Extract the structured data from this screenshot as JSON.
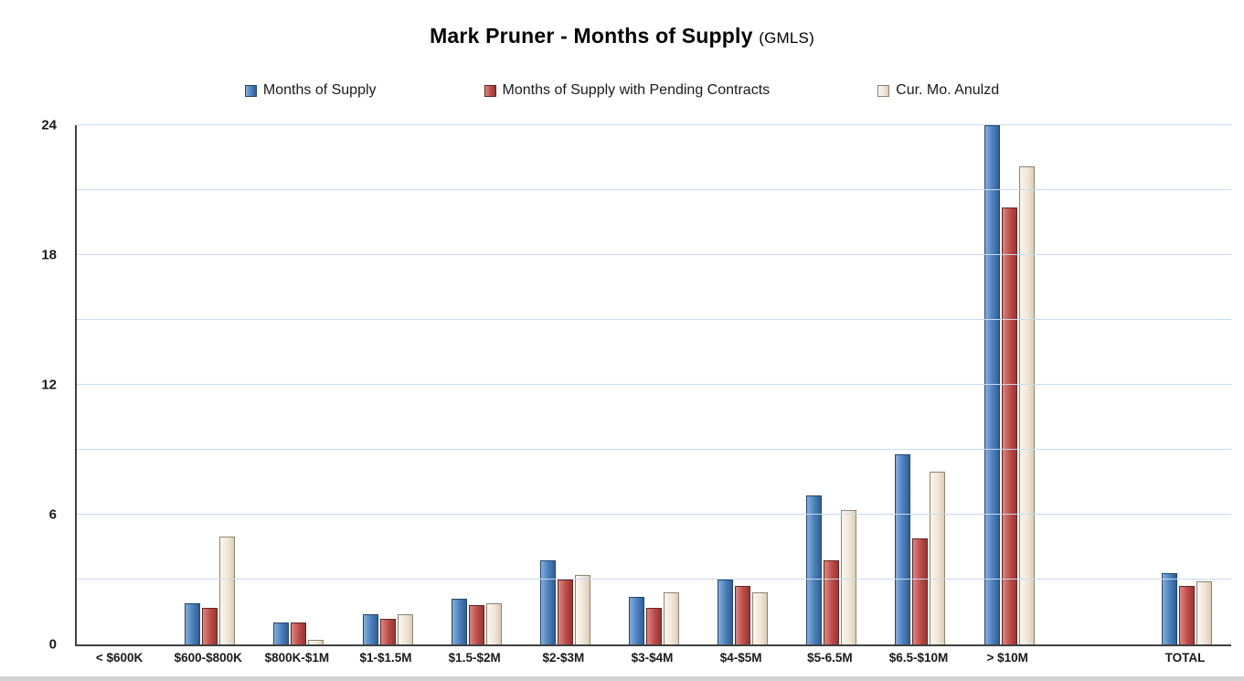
{
  "chart_data": {
    "type": "bar",
    "title": "Mark Pruner - Months of Supply",
    "title_suffix": "(GMLS)",
    "categories": [
      "< $600K",
      "$600-$800K",
      "$800K-$1M",
      "$1-$1.5M",
      "$1.5-$2M",
      "$2-$3M",
      "$3-$4M",
      "$4-$5M",
      "$5-6.5M",
      "$6.5-$10M",
      "> $10M",
      "TOTAL"
    ],
    "series": [
      {
        "name": "Months of Supply",
        "values": [
          0,
          1.9,
          1.0,
          1.4,
          2.1,
          3.9,
          2.2,
          3.0,
          6.9,
          8.8,
          24.0,
          3.3
        ],
        "colors": {
          "light": "#85aedc",
          "base": "#4a7ebb",
          "dark": "#315f93",
          "border": "#23466b"
        }
      },
      {
        "name": "Months of Supply with Pending Contracts",
        "values": [
          0,
          1.7,
          1.0,
          1.2,
          1.8,
          3.0,
          1.7,
          2.7,
          3.9,
          4.9,
          20.2,
          2.7
        ],
        "colors": {
          "light": "#d98885",
          "base": "#be4b48",
          "dark": "#953634",
          "border": "#622523"
        }
      },
      {
        "name": "Cur. Mo. Anulzd",
        "values": [
          0,
          5.0,
          0.2,
          1.4,
          1.9,
          3.2,
          2.4,
          2.4,
          6.2,
          8.0,
          22.1,
          2.9
        ],
        "colors": {
          "light": "#fbf6ee",
          "base": "#f0e6d8",
          "dark": "#dbccb6",
          "border": "#8c8470"
        }
      }
    ],
    "ylim": [
      0,
      24
    ],
    "yticks": [
      0,
      6,
      12,
      18,
      24
    ],
    "grid_step": 3,
    "grid": true,
    "legend_position": "top",
    "gap_before_total": true
  }
}
